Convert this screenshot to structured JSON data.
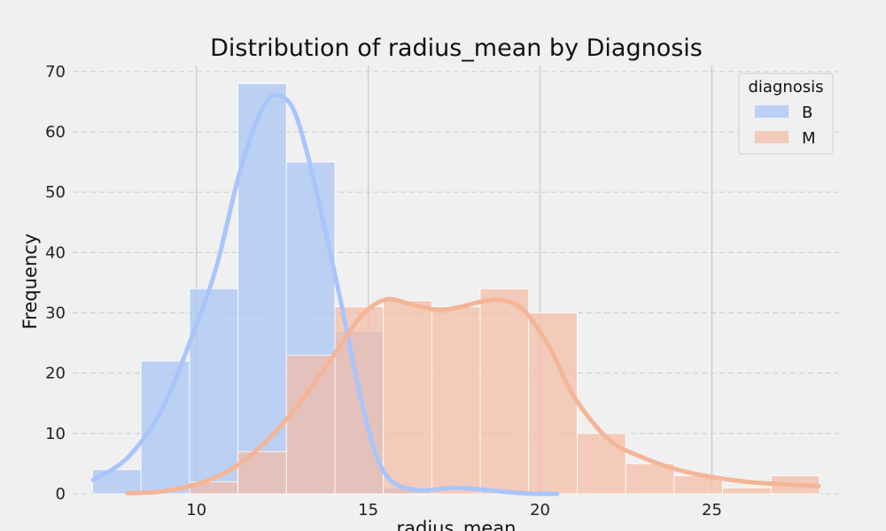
{
  "chart_data": {
    "type": "histogram",
    "title": "Distribution of radius_mean by Diagnosis",
    "xlabel": "radius_mean",
    "ylabel": "Frequency",
    "xlim": [
      6.4,
      28.7
    ],
    "ylim": [
      0,
      71
    ],
    "xticks": [
      10,
      15,
      20,
      25
    ],
    "yticks": [
      0,
      10,
      20,
      30,
      40,
      50,
      60,
      70
    ],
    "grid": true,
    "legend": {
      "title": "diagnosis",
      "placement": "top-right"
    },
    "bin_edges": [
      6.98,
      8.39,
      9.8,
      11.21,
      12.62,
      14.03,
      15.44,
      16.85,
      18.26,
      19.67,
      21.08,
      22.49,
      23.9,
      25.31,
      26.72,
      28.13
    ],
    "series": [
      {
        "name": "B",
        "color": "#a8c4f5",
        "line_color": "#a9c5fb",
        "counts": [
          4,
          22,
          34,
          68,
          55,
          27,
          1,
          0,
          0,
          0,
          0,
          0,
          0,
          0,
          0
        ],
        "kde": [
          [
            7.0,
            2.3
          ],
          [
            8.0,
            6.0
          ],
          [
            9.0,
            14.0
          ],
          [
            10.0,
            28.0
          ],
          [
            10.6,
            38.0
          ],
          [
            11.2,
            52.0
          ],
          [
            11.7,
            61.0
          ],
          [
            12.1,
            65.5
          ],
          [
            12.4,
            66.0
          ],
          [
            12.8,
            64.0
          ],
          [
            13.2,
            57.0
          ],
          [
            13.7,
            45.0
          ],
          [
            14.2,
            32.0
          ],
          [
            14.7,
            18.0
          ],
          [
            15.2,
            7.0
          ],
          [
            15.7,
            2.0
          ],
          [
            16.5,
            0.6
          ],
          [
            17.5,
            1.0
          ],
          [
            18.5,
            0.6
          ],
          [
            19.5,
            0.1
          ],
          [
            20.5,
            0.0
          ]
        ]
      },
      {
        "name": "M",
        "color": "#f4bda5",
        "line_color": "#f4b597",
        "counts": [
          0,
          0,
          2,
          7,
          23,
          31,
          32,
          31,
          34,
          30,
          10,
          5,
          3,
          1,
          3
        ],
        "kde": [
          [
            8.0,
            0.1
          ],
          [
            9.0,
            0.4
          ],
          [
            10.0,
            1.6
          ],
          [
            11.0,
            4.0
          ],
          [
            12.0,
            8.5
          ],
          [
            13.0,
            15.0
          ],
          [
            14.0,
            23.0
          ],
          [
            14.8,
            29.5
          ],
          [
            15.5,
            32.2
          ],
          [
            16.2,
            31.5
          ],
          [
            17.0,
            30.5
          ],
          [
            17.7,
            31.0
          ],
          [
            18.4,
            32.0
          ],
          [
            19.0,
            32.0
          ],
          [
            19.6,
            30.0
          ],
          [
            20.3,
            24.0
          ],
          [
            21.0,
            16.0
          ],
          [
            22.0,
            9.0
          ],
          [
            23.0,
            6.0
          ],
          [
            24.0,
            4.0
          ],
          [
            25.0,
            2.8
          ],
          [
            26.0,
            2.0
          ],
          [
            27.0,
            1.6
          ],
          [
            28.1,
            1.3
          ]
        ]
      }
    ]
  }
}
